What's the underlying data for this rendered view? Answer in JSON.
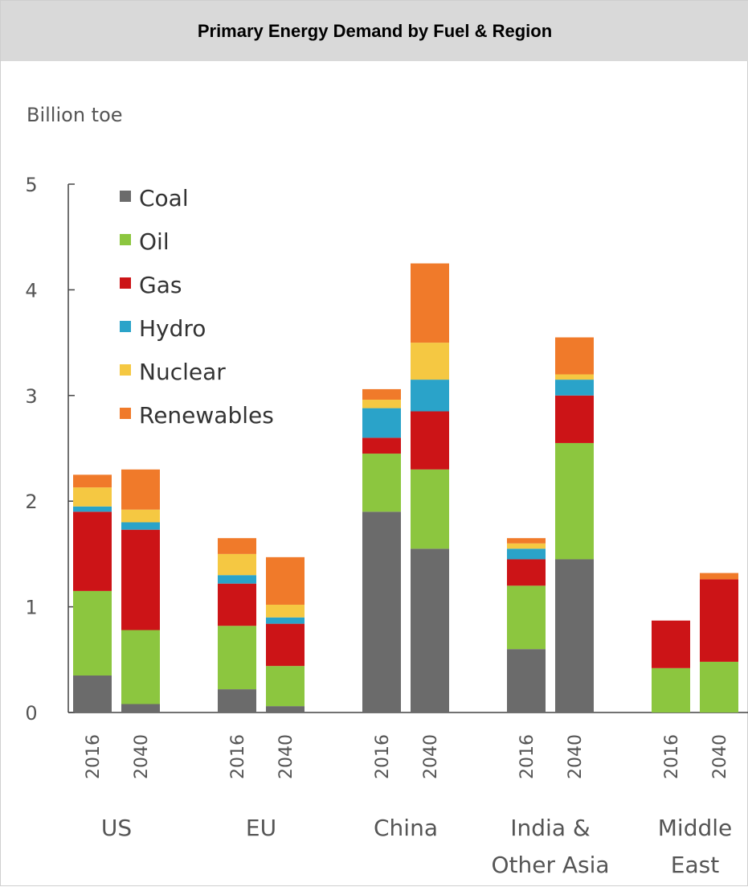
{
  "chart_data": {
    "type": "bar",
    "stacked": true,
    "title": "Primary Energy Demand by Fuel & Region",
    "unit_label": "Billion toe",
    "ylim": [
      0,
      5
    ],
    "yticks": [
      "0",
      "1",
      "2",
      "3",
      "4",
      "5"
    ],
    "legend_position": "top-left",
    "groups": [
      {
        "name": "US",
        "name_lines": [
          "US"
        ],
        "years": [
          "2016",
          "2040"
        ]
      },
      {
        "name": "EU",
        "name_lines": [
          "EU"
        ],
        "years": [
          "2016",
          "2040"
        ]
      },
      {
        "name": "China",
        "name_lines": [
          "China"
        ],
        "years": [
          "2016",
          "2040"
        ]
      },
      {
        "name": "India & Other Asia",
        "name_lines": [
          "India &",
          "Other Asia"
        ],
        "years": [
          "2016",
          "2040"
        ]
      },
      {
        "name": "Middle East",
        "name_lines": [
          "Middle",
          "East"
        ],
        "years": [
          "2016",
          "2040"
        ]
      }
    ],
    "categories": [
      "US 2016",
      "US 2040",
      "EU 2016",
      "EU 2040",
      "China 2016",
      "China 2040",
      "India & Other Asia 2016",
      "India & Other Asia 2040",
      "Middle East 2016",
      "Middle East 2040"
    ],
    "series": [
      {
        "name": "Coal",
        "color": "#6b6b6b",
        "values": [
          0.35,
          0.08,
          0.22,
          0.06,
          1.9,
          1.55,
          0.6,
          1.45,
          0.0,
          0.0
        ]
      },
      {
        "name": "Oil",
        "color": "#8cc63f",
        "values": [
          0.8,
          0.7,
          0.6,
          0.38,
          0.55,
          0.75,
          0.6,
          1.1,
          0.42,
          0.48
        ]
      },
      {
        "name": "Gas",
        "color": "#cc1417",
        "values": [
          0.75,
          0.95,
          0.4,
          0.4,
          0.15,
          0.55,
          0.25,
          0.45,
          0.45,
          0.78
        ]
      },
      {
        "name": "Hydro",
        "color": "#2aa3c9",
        "values": [
          0.05,
          0.07,
          0.08,
          0.06,
          0.28,
          0.3,
          0.1,
          0.15,
          0.0,
          0.0
        ]
      },
      {
        "name": "Nuclear",
        "color": "#f5c842",
        "values": [
          0.18,
          0.12,
          0.2,
          0.12,
          0.08,
          0.35,
          0.05,
          0.05,
          0.0,
          0.0
        ]
      },
      {
        "name": "Renewables",
        "color": "#f07a2a",
        "values": [
          0.12,
          0.38,
          0.15,
          0.45,
          0.1,
          0.75,
          0.05,
          0.35,
          0.0,
          0.06
        ]
      }
    ]
  }
}
